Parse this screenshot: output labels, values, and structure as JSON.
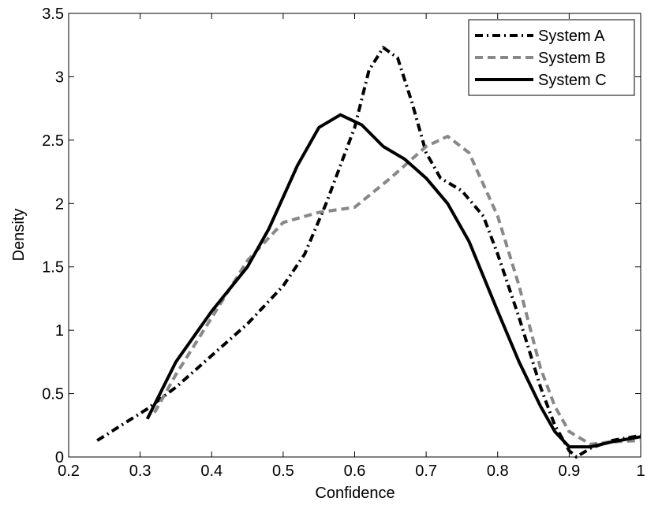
{
  "chart_data": {
    "type": "line",
    "xlabel": "Confidence",
    "ylabel": "Density",
    "xlim": [
      0.2,
      1
    ],
    "ylim": [
      0,
      3.5
    ],
    "xticks": [
      0.2,
      0.3,
      0.4,
      0.5,
      0.6,
      0.7,
      0.8,
      0.9,
      1
    ],
    "yticks": [
      0,
      0.5,
      1,
      1.5,
      2,
      2.5,
      3,
      3.5
    ],
    "grid": false,
    "legend": "northeast",
    "series": [
      {
        "name": "System A",
        "color": "#000000",
        "style": "dashdot",
        "x": [
          0.24,
          0.31,
          0.35,
          0.4,
          0.45,
          0.5,
          0.53,
          0.56,
          0.6,
          0.62,
          0.64,
          0.66,
          0.68,
          0.7,
          0.72,
          0.75,
          0.78,
          0.8,
          0.83,
          0.86,
          0.88,
          0.9,
          0.91,
          0.93,
          0.96,
          1
        ],
        "values": [
          0.13,
          0.38,
          0.55,
          0.8,
          1.05,
          1.35,
          1.6,
          2.0,
          2.6,
          3.05,
          3.23,
          3.15,
          2.8,
          2.4,
          2.2,
          2.1,
          1.9,
          1.6,
          1.1,
          0.55,
          0.25,
          0.05,
          0.0,
          0.07,
          0.13,
          0.17
        ]
      },
      {
        "name": "System B",
        "color": "#888888",
        "style": "dashed",
        "x": [
          0.32,
          0.35,
          0.4,
          0.45,
          0.5,
          0.55,
          0.6,
          0.65,
          0.7,
          0.73,
          0.76,
          0.8,
          0.83,
          0.86,
          0.88,
          0.9,
          0.93,
          0.96,
          1
        ],
        "values": [
          0.35,
          0.65,
          1.1,
          1.55,
          1.85,
          1.93,
          1.97,
          2.2,
          2.45,
          2.53,
          2.4,
          1.9,
          1.35,
          0.7,
          0.4,
          0.2,
          0.1,
          0.12,
          0.13
        ]
      },
      {
        "name": "System C",
        "color": "#000000",
        "style": "solid",
        "x": [
          0.31,
          0.35,
          0.4,
          0.45,
          0.48,
          0.52,
          0.55,
          0.58,
          0.61,
          0.64,
          0.67,
          0.7,
          0.73,
          0.76,
          0.8,
          0.83,
          0.86,
          0.88,
          0.9,
          0.93,
          0.96,
          1
        ],
        "values": [
          0.3,
          0.75,
          1.15,
          1.5,
          1.8,
          2.3,
          2.6,
          2.7,
          2.62,
          2.45,
          2.35,
          2.2,
          2.0,
          1.7,
          1.15,
          0.75,
          0.4,
          0.2,
          0.08,
          0.08,
          0.12,
          0.16
        ]
      }
    ]
  }
}
